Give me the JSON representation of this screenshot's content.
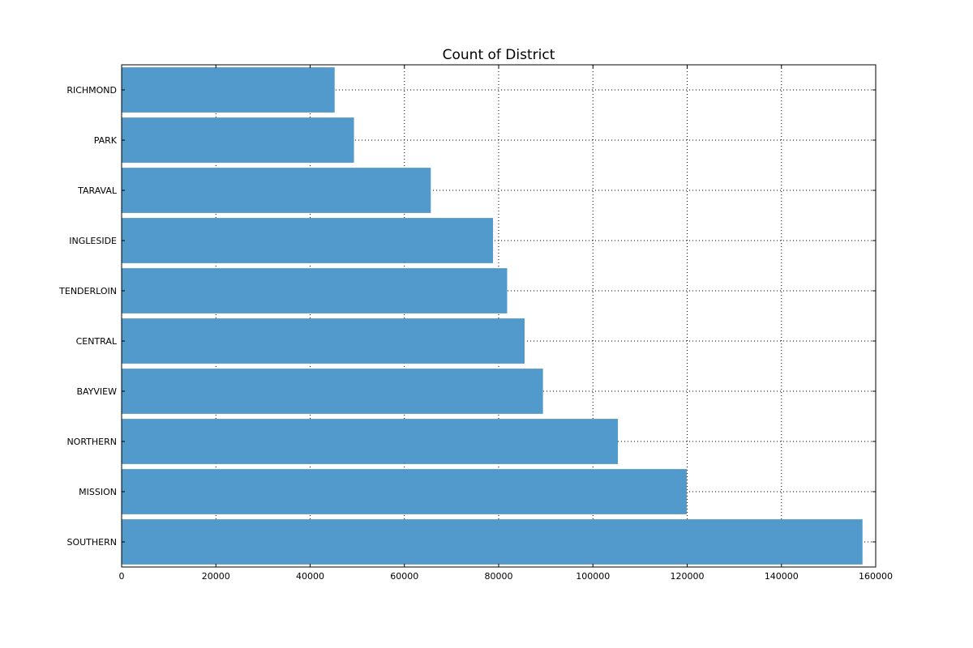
{
  "chart_data": {
    "type": "bar",
    "orientation": "horizontal",
    "title": "Count of District",
    "xlabel": "",
    "ylabel": "",
    "categories": [
      "RICHMOND",
      "PARK",
      "TARAVAL",
      "INGLESIDE",
      "TENDERLOIN",
      "CENTRAL",
      "BAYVIEW",
      "NORTHERN",
      "MISSION",
      "SOUTHERN"
    ],
    "values": [
      45200,
      49300,
      65600,
      78800,
      81800,
      85500,
      89400,
      105300,
      119900,
      157200
    ],
    "xlim": [
      0,
      160000
    ],
    "xticks": [
      0,
      20000,
      40000,
      60000,
      80000,
      100000,
      120000,
      140000,
      160000
    ],
    "grid": true,
    "bar_color": "#5299cc"
  }
}
